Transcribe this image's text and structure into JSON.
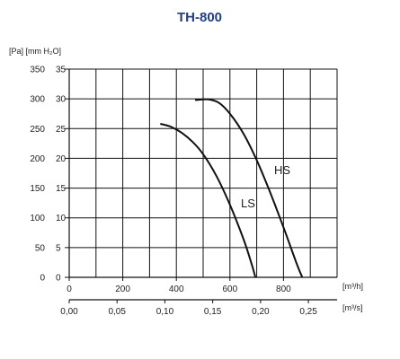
{
  "chart_data": {
    "type": "line",
    "title": "TH-800",
    "ylabel_left": "[Pa] [mm H₂O]",
    "xlabel_top": "[m³/h]",
    "xlabel_bottom": "[m³/s]",
    "ylim": [
      0,
      350
    ],
    "ylim_mmH2O": [
      0,
      35
    ],
    "xlim": [
      0,
      1000
    ],
    "xlim_m3s": [
      0,
      0.28
    ],
    "grid": true,
    "y_ticks_pa": [
      "0",
      "50",
      "100",
      "150",
      "200",
      "250",
      "300",
      "350"
    ],
    "y_ticks_mm": [
      "0",
      "5",
      "10",
      "15",
      "20",
      "25",
      "30",
      "35"
    ],
    "x_ticks_m3h": [
      "0",
      "200",
      "400",
      "600",
      "800"
    ],
    "x_ticks_m3s": [
      "0,00",
      "0,05",
      "0,10",
      "0,15",
      "0,20",
      "0,25"
    ],
    "series": [
      {
        "name": "HS",
        "x": [
          470,
          520,
          560,
          600,
          650,
          700,
          750,
          800,
          850,
          870
        ],
        "y": [
          298,
          299,
          293,
          275,
          242,
          197,
          143,
          84,
          22,
          0
        ]
      },
      {
        "name": "LS",
        "x": [
          340,
          380,
          420,
          460,
          500,
          550,
          600,
          650,
          680,
          695
        ],
        "y": [
          258,
          253,
          243,
          228,
          207,
          170,
          122,
          65,
          24,
          0
        ]
      }
    ]
  },
  "colors": {
    "title": "#1f3f8a",
    "grid": "#111111",
    "curve": "#111111"
  }
}
